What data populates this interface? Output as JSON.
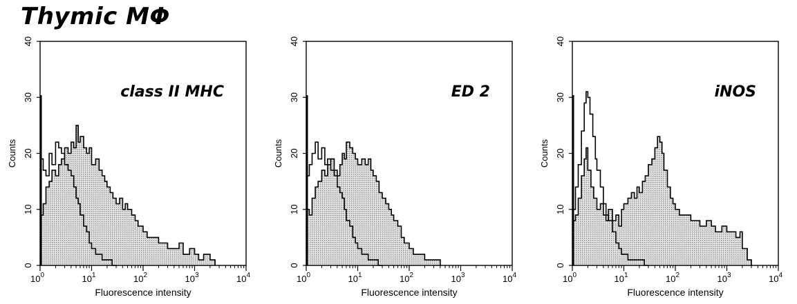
{
  "figure": {
    "title": "Thymic MΦ"
  },
  "chart_data": [
    {
      "type": "histogram",
      "panel_label": "class II MHC",
      "xlabel": "Fluorescence intensity",
      "ylabel": "Counts",
      "xscale": "log",
      "xlim": [
        1,
        10000
      ],
      "ylim": [
        0,
        40
      ],
      "x_ticks": [
        {
          "value": 1,
          "mant": "10",
          "exp": "0"
        },
        {
          "value": 10,
          "mant": "10",
          "exp": "1"
        },
        {
          "value": 100,
          "mant": "10",
          "exp": "2"
        },
        {
          "value": 1000,
          "mant": "10",
          "exp": "3"
        },
        {
          "value": 10000,
          "mant": "10",
          "exp": "4"
        }
      ],
      "y_ticks": [
        0,
        10,
        20,
        30,
        40
      ],
      "series": [
        {
          "style": "filled-gray",
          "x": [
            1,
            1.15,
            1.3,
            1.5,
            1.7,
            2,
            2.3,
            2.6,
            3,
            3.5,
            4,
            4.5,
            5,
            5.5,
            6,
            7,
            8,
            9,
            10,
            12,
            14,
            16,
            18,
            20,
            23,
            26,
            30,
            35,
            40,
            45,
            50,
            60,
            70,
            80,
            100,
            120,
            150,
            200,
            250,
            300,
            400,
            500,
            600,
            800,
            1000,
            1200,
            1500,
            2000,
            2500
          ],
          "y": [
            9,
            11,
            14,
            15,
            17,
            16,
            18,
            19,
            21,
            20,
            22,
            21,
            25,
            22,
            23,
            21,
            20,
            21,
            18,
            19,
            17,
            16,
            15,
            14,
            13,
            12,
            11,
            12,
            10,
            11,
            10,
            9,
            8,
            7,
            6,
            5,
            5,
            4,
            4,
            3,
            3,
            4,
            2,
            3,
            2,
            1,
            2,
            1,
            0
          ]
        },
        {
          "style": "outline",
          "x": [
            1,
            1.15,
            1.3,
            1.5,
            1.7,
            2,
            2.3,
            2.6,
            3,
            3.5,
            4,
            4.5,
            5,
            5.5,
            6,
            7,
            8,
            9,
            10,
            12,
            14,
            16,
            18,
            20,
            25,
            30
          ],
          "y": [
            19,
            17,
            16,
            20,
            18,
            22,
            21,
            20,
            18,
            17,
            16,
            14,
            12,
            11,
            9,
            7,
            6,
            4,
            3,
            2,
            2,
            1,
            1,
            1,
            0,
            0
          ]
        }
      ]
    },
    {
      "type": "histogram",
      "panel_label": "ED 2",
      "xlabel": "Fluorescence intensity",
      "ylabel": "Counts",
      "xscale": "log",
      "xlim": [
        1,
        10000
      ],
      "ylim": [
        0,
        40
      ],
      "x_ticks": [
        {
          "value": 1,
          "mant": "10",
          "exp": "0"
        },
        {
          "value": 10,
          "mant": "10",
          "exp": "1"
        },
        {
          "value": 100,
          "mant": "10",
          "exp": "2"
        },
        {
          "value": 1000,
          "mant": "10",
          "exp": "3"
        },
        {
          "value": 10000,
          "mant": "10",
          "exp": "4"
        }
      ],
      "y_ticks": [
        0,
        10,
        20,
        30,
        40
      ],
      "series": [
        {
          "style": "filled-gray",
          "x": [
            1,
            1.15,
            1.3,
            1.5,
            1.7,
            2,
            2.3,
            2.6,
            3,
            3.5,
            4,
            4.5,
            5,
            5.5,
            6,
            7,
            8,
            9,
            10,
            12,
            14,
            16,
            18,
            20,
            23,
            26,
            30,
            35,
            40,
            45,
            50,
            60,
            70,
            80,
            100,
            120,
            150,
            200,
            250,
            300,
            400
          ],
          "y": [
            10,
            9,
            12,
            14,
            15,
            17,
            16,
            18,
            19,
            17,
            16,
            18,
            20,
            19,
            22,
            21,
            20,
            19,
            18,
            19,
            18,
            19,
            17,
            16,
            15,
            13,
            12,
            11,
            10,
            9,
            8,
            7,
            5,
            4,
            3,
            2,
            2,
            1,
            1,
            1,
            0
          ]
        },
        {
          "style": "outline",
          "x": [
            1,
            1.15,
            1.3,
            1.5,
            1.7,
            2,
            2.3,
            2.6,
            3,
            3.5,
            4,
            4.5,
            5,
            5.5,
            6,
            7,
            8,
            9,
            10,
            12,
            14,
            16,
            18,
            20,
            25,
            30
          ],
          "y": [
            16,
            18,
            20,
            22,
            19,
            21,
            18,
            19,
            17,
            16,
            14,
            13,
            12,
            10,
            8,
            7,
            5,
            4,
            3,
            2,
            2,
            1,
            1,
            1,
            0,
            0
          ]
        }
      ]
    },
    {
      "type": "histogram",
      "panel_label": "iNOS",
      "xlabel": "Fluorescence intensity",
      "ylabel": "Counts",
      "xscale": "log",
      "xlim": [
        1,
        10000
      ],
      "ylim": [
        0,
        40
      ],
      "x_ticks": [
        {
          "value": 1,
          "mant": "10",
          "exp": "0"
        },
        {
          "value": 10,
          "mant": "10",
          "exp": "1"
        },
        {
          "value": 100,
          "mant": "10",
          "exp": "2"
        },
        {
          "value": 1000,
          "mant": "10",
          "exp": "3"
        },
        {
          "value": 10000,
          "mant": "10",
          "exp": "4"
        }
      ],
      "y_ticks": [
        0,
        10,
        20,
        30,
        40
      ],
      "series": [
        {
          "style": "filled-gray",
          "x": [
            1,
            1.15,
            1.3,
            1.5,
            1.7,
            1.85,
            2,
            2.3,
            2.6,
            3,
            3.5,
            4,
            4.5,
            5,
            6,
            7,
            8,
            9,
            10,
            12,
            14,
            16,
            18,
            20,
            23,
            26,
            30,
            35,
            40,
            45,
            50,
            55,
            60,
            70,
            80,
            90,
            100,
            120,
            150,
            200,
            250,
            300,
            400,
            500,
            600,
            800,
            1000,
            1200,
            1500,
            1800,
            2000,
            2500,
            3000
          ],
          "y": [
            8,
            9,
            12,
            16,
            19,
            21,
            17,
            14,
            12,
            10,
            11,
            9,
            8,
            10,
            8,
            9,
            7,
            10,
            11,
            12,
            13,
            12,
            14,
            13,
            15,
            16,
            18,
            19,
            21,
            23,
            22,
            20,
            17,
            14,
            12,
            11,
            10,
            9,
            9,
            8,
            8,
            7,
            8,
            7,
            6,
            7,
            6,
            6,
            5,
            6,
            3,
            1,
            0
          ]
        },
        {
          "style": "outline",
          "x": [
            1,
            1.15,
            1.3,
            1.5,
            1.7,
            1.85,
            2,
            2.2,
            2.5,
            2.8,
            3,
            3.5,
            4,
            4.5,
            5,
            6,
            7,
            8,
            9,
            10,
            12,
            14,
            16,
            20,
            25,
            30
          ],
          "y": [
            10,
            14,
            18,
            24,
            29,
            31,
            30,
            27,
            23,
            19,
            17,
            14,
            11,
            9,
            8,
            6,
            4,
            3,
            2,
            2,
            1,
            1,
            1,
            1,
            0,
            0
          ]
        }
      ]
    }
  ]
}
